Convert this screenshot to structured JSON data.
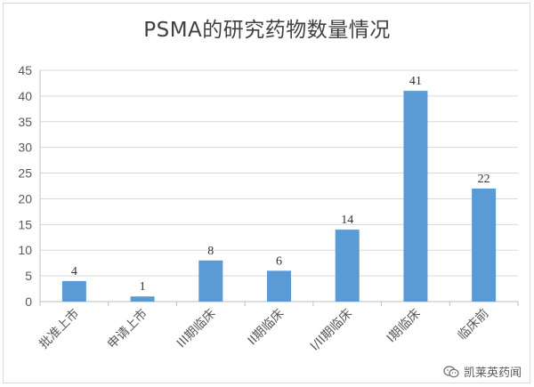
{
  "chart_data": {
    "type": "bar",
    "title": "PSMA的研究药物数量情况",
    "categories": [
      "批准上市",
      "申请上市",
      "III期临床",
      "II期临床",
      "I/II期临床",
      "I期临床",
      "临床前"
    ],
    "values": [
      4,
      1,
      8,
      6,
      14,
      41,
      22
    ],
    "data_labels": [
      "4",
      "1",
      "8",
      "6",
      "14",
      "41",
      "22"
    ],
    "ylim": [
      0,
      45
    ],
    "yticks": [
      0,
      5,
      10,
      15,
      20,
      25,
      30,
      35,
      40,
      45
    ],
    "grid": true,
    "legend": "none",
    "bar_color": "#5b9bd5"
  },
  "watermark": {
    "text": "凯莱英药闻",
    "icon": "wechat-icon"
  }
}
